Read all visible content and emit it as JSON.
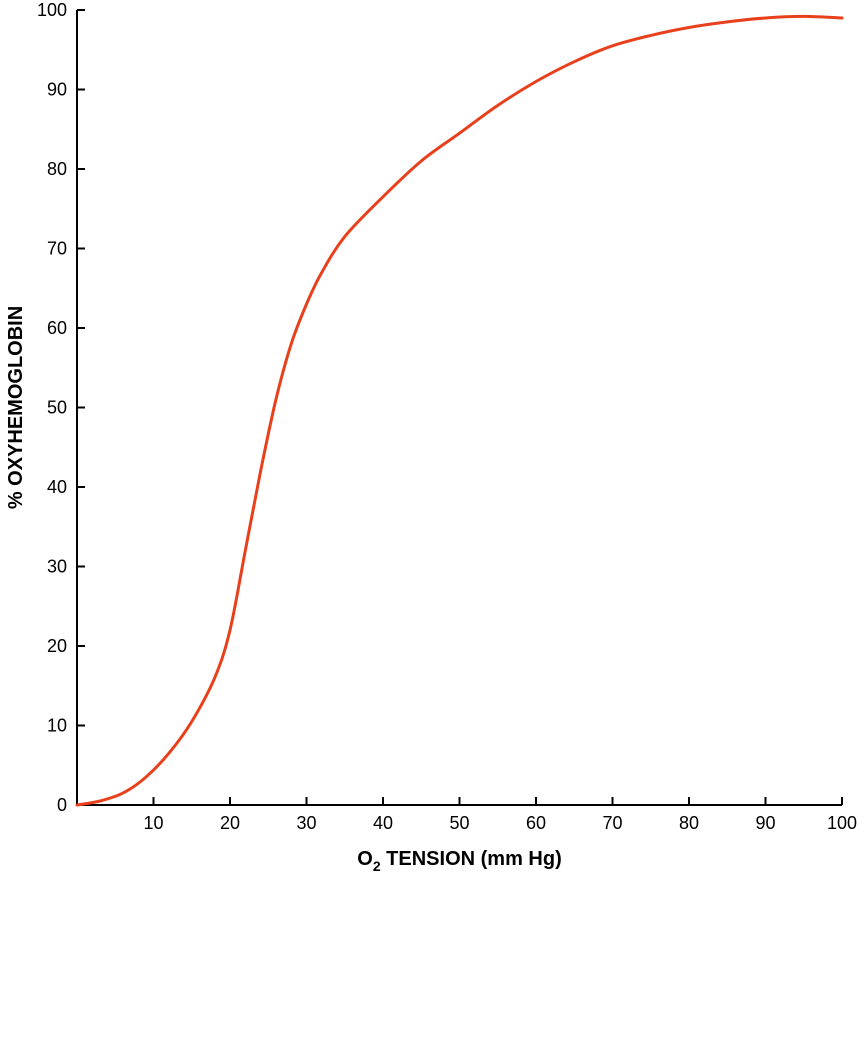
{
  "chart_data": {
    "type": "line",
    "xlabel_prefix": "O",
    "xlabel_subscript": "2",
    "xlabel_suffix": " TENSION (mm Hg)",
    "ylabel": "% OXYHEMOGLOBIN",
    "xlim": [
      0,
      100
    ],
    "ylim": [
      0,
      100
    ],
    "x_ticks": [
      10,
      20,
      30,
      40,
      50,
      60,
      70,
      80,
      90,
      100
    ],
    "y_ticks": [
      0,
      10,
      20,
      30,
      40,
      50,
      60,
      70,
      80,
      90,
      100
    ],
    "grid": false,
    "series": [
      {
        "color": "#e8401c",
        "x": [
          0,
          3,
          6,
          9,
          12,
          15,
          18,
          20,
          22,
          24,
          26,
          28,
          30,
          32,
          35,
          40,
          45,
          50,
          55,
          60,
          65,
          70,
          75,
          80,
          85,
          90,
          95,
          100
        ],
        "y": [
          0,
          0.5,
          1.5,
          3.5,
          6.5,
          10.5,
          16,
          22,
          32,
          42,
          51,
          58,
          63,
          67,
          71.5,
          76.5,
          81,
          84.5,
          88,
          91,
          93.5,
          95.5,
          96.8,
          97.8,
          98.5,
          99,
          99.2,
          99
        ]
      }
    ]
  }
}
